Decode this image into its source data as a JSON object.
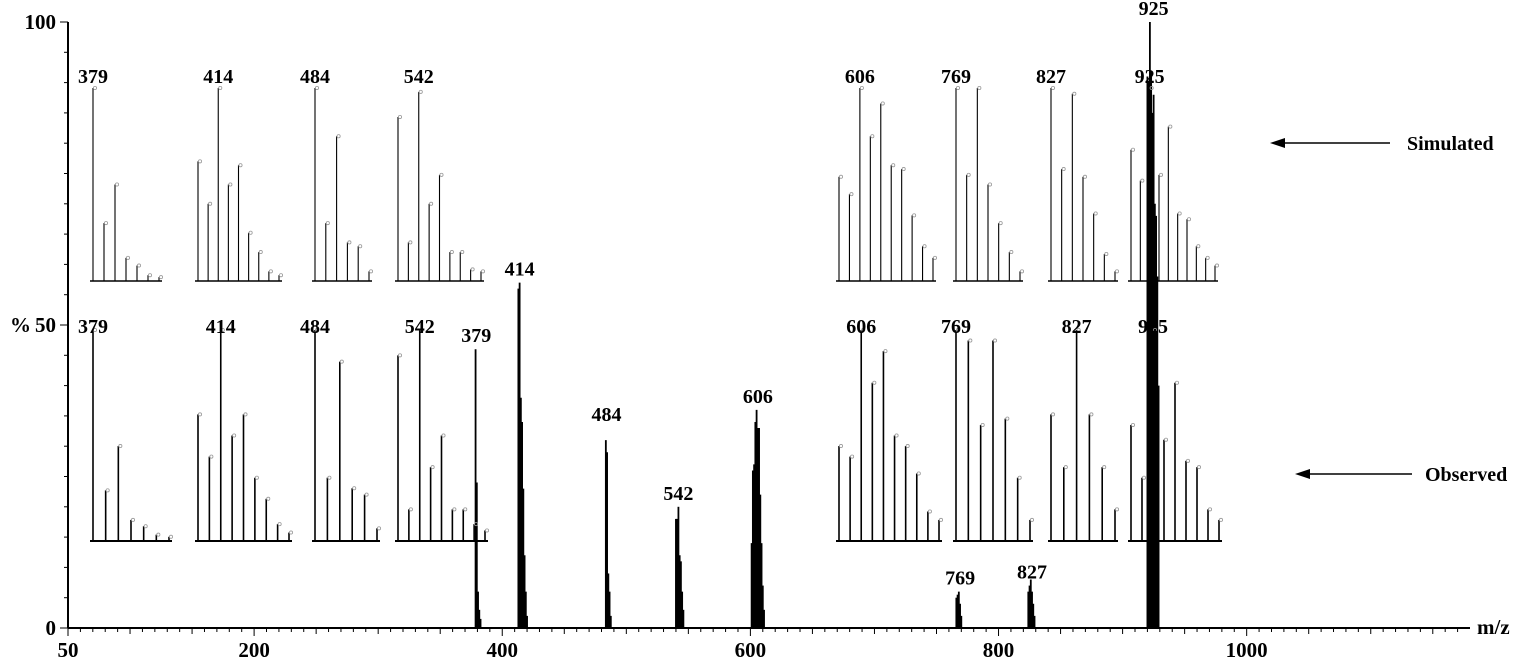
{
  "chart_data": {
    "type": "bar",
    "xlabel": "m/z",
    "ylabel": "%",
    "xlim": [
      50,
      1180
    ],
    "ylim": [
      0,
      100
    ],
    "x_ticks": [
      50,
      200,
      400,
      600,
      800,
      1000
    ],
    "y_ticks": [
      0,
      50,
      100
    ],
    "peaks": [
      {
        "mz": 379,
        "label": "379",
        "intensity": 46,
        "sticks": [
          [
            378.5,
            46
          ],
          [
            379.5,
            24
          ],
          [
            380.5,
            6
          ],
          [
            381.5,
            3
          ],
          [
            382.5,
            1.5
          ]
        ]
      },
      {
        "mz": 414,
        "label": "414",
        "intensity": 57,
        "sticks": [
          [
            413,
            56
          ],
          [
            414,
            57
          ],
          [
            415,
            38
          ],
          [
            416,
            34
          ],
          [
            417,
            23
          ],
          [
            418,
            12
          ],
          [
            419,
            6
          ],
          [
            420,
            2
          ]
        ]
      },
      {
        "mz": 484,
        "label": "484",
        "intensity": 33,
        "sticks": [
          [
            483.5,
            31
          ],
          [
            484.5,
            29
          ],
          [
            485.5,
            9
          ],
          [
            486.5,
            6
          ],
          [
            487.5,
            2
          ]
        ]
      },
      {
        "mz": 542,
        "label": "542",
        "intensity": 20,
        "sticks": [
          [
            540,
            18
          ],
          [
            541,
            18
          ],
          [
            542,
            20
          ],
          [
            543,
            12
          ],
          [
            544,
            11
          ],
          [
            545,
            6
          ],
          [
            546,
            3
          ]
        ]
      },
      {
        "mz": 606,
        "label": "606",
        "intensity": 36,
        "sticks": [
          [
            601,
            14
          ],
          [
            602,
            26
          ],
          [
            603,
            27
          ],
          [
            604,
            34
          ],
          [
            605,
            36
          ],
          [
            606,
            33
          ],
          [
            607,
            33
          ],
          [
            608,
            22
          ],
          [
            609,
            14
          ],
          [
            610,
            7
          ],
          [
            611,
            3
          ]
        ]
      },
      {
        "mz": 769,
        "label": "769",
        "intensity": 6,
        "sticks": [
          [
            766,
            5
          ],
          [
            767,
            5.5
          ],
          [
            768,
            6
          ],
          [
            769,
            4
          ],
          [
            770,
            2
          ]
        ]
      },
      {
        "mz": 827,
        "label": "827",
        "intensity": 7,
        "sticks": [
          [
            824,
            6
          ],
          [
            825,
            7
          ],
          [
            826,
            8
          ],
          [
            827,
            6
          ],
          [
            828,
            4
          ],
          [
            829,
            2
          ]
        ]
      },
      {
        "mz": 925,
        "label": "925",
        "intensity": 100,
        "sticks": [
          [
            920,
            91
          ],
          [
            921,
            90
          ],
          [
            922,
            100
          ],
          [
            923,
            92
          ],
          [
            924,
            85
          ],
          [
            925,
            88
          ],
          [
            926,
            70
          ],
          [
            927,
            68
          ],
          [
            928,
            58
          ],
          [
            929,
            40
          ]
        ]
      }
    ],
    "insets": {
      "simulated": [
        {
          "label": "379",
          "values": [
            100,
            30,
            50,
            12,
            8,
            3,
            2
          ]
        },
        {
          "label": "414",
          "values": [
            62,
            40,
            100,
            50,
            60,
            25,
            15,
            5,
            3
          ]
        },
        {
          "label": "484",
          "values": [
            100,
            30,
            75,
            20,
            18,
            5
          ]
        },
        {
          "label": "542",
          "values": [
            85,
            20,
            98,
            40,
            55,
            15,
            15,
            6,
            5
          ]
        },
        {
          "label": "606",
          "values": [
            54,
            45,
            100,
            75,
            92,
            60,
            58,
            34,
            18,
            12
          ]
        },
        {
          "label": "769",
          "values": [
            100,
            55,
            100,
            50,
            30,
            15,
            5
          ]
        },
        {
          "label": "827",
          "values": [
            100,
            58,
            97,
            54,
            35,
            14,
            5
          ]
        },
        {
          "label": "925",
          "values": [
            68,
            52,
            100,
            55,
            80,
            35,
            32,
            18,
            12,
            8
          ]
        }
      ],
      "observed": [
        {
          "label": "379",
          "values": [
            100,
            24,
            45,
            10,
            7,
            3,
            2
          ]
        },
        {
          "label": "414",
          "values": [
            60,
            40,
            100,
            50,
            60,
            30,
            20,
            8,
            4
          ]
        },
        {
          "label": "484",
          "values": [
            100,
            30,
            85,
            25,
            22,
            6
          ]
        },
        {
          "label": "542",
          "values": [
            88,
            15,
            100,
            35,
            50,
            15,
            15,
            8,
            5
          ]
        },
        {
          "label": "606",
          "values": [
            45,
            40,
            100,
            75,
            90,
            50,
            45,
            32,
            14,
            10
          ]
        },
        {
          "label": "769",
          "values": [
            100,
            95,
            55,
            95,
            58,
            30,
            10
          ]
        },
        {
          "label": "827",
          "values": [
            60,
            35,
            100,
            60,
            35,
            15
          ]
        },
        {
          "label": "925",
          "values": [
            55,
            30,
            100,
            48,
            75,
            38,
            35,
            15,
            10
          ]
        }
      ]
    },
    "annotations": [
      {
        "text": "Simulated",
        "row": "simulated"
      },
      {
        "text": "Observed",
        "row": "observed"
      }
    ]
  }
}
